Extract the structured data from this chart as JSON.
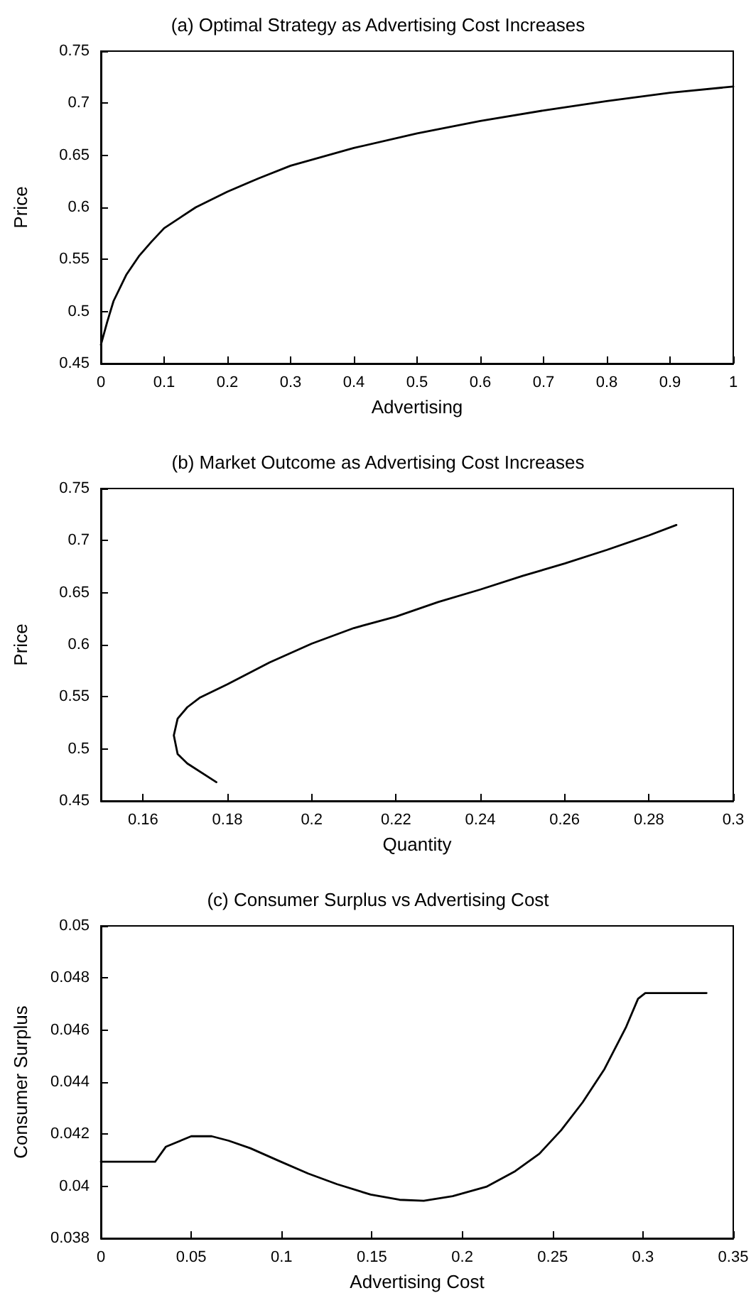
{
  "chart_data": [
    {
      "type": "line",
      "title": "(a) Optimal Strategy as Advertising Cost Increases",
      "xlabel": "Advertising",
      "ylabel": "Price",
      "xlim": [
        0,
        1
      ],
      "xticks": [
        0,
        0.1,
        0.2,
        0.3,
        0.4,
        0.5,
        0.6,
        0.7,
        0.8,
        0.9,
        1
      ],
      "ylim": [
        0.45,
        0.75
      ],
      "yticks": [
        0.45,
        0.5,
        0.55,
        0.6,
        0.65,
        0.7,
        0.75
      ],
      "grid": false,
      "marker": "none",
      "line_style": "solid",
      "series": [
        {
          "color": "#000000",
          "x": [
            0,
            0.01,
            0.02,
            0.04,
            0.06,
            0.08,
            0.1,
            0.15,
            0.2,
            0.25,
            0.3,
            0.4,
            0.5,
            0.6,
            0.7,
            0.8,
            0.9,
            1
          ],
          "values": [
            0.468,
            0.49,
            0.51,
            0.535,
            0.553,
            0.567,
            0.58,
            0.6,
            0.615,
            0.628,
            0.64,
            0.657,
            0.671,
            0.683,
            0.693,
            0.702,
            0.71,
            0.716
          ]
        }
      ]
    },
    {
      "type": "line",
      "title": "(b) Market Outcome as Advertising Cost Increases",
      "xlabel": "Quantity",
      "ylabel": "Price",
      "xlim": [
        0.15,
        0.3
      ],
      "xticks": [
        0.16,
        0.18,
        0.2,
        0.22,
        0.24,
        0.26,
        0.28,
        0.3
      ],
      "ylim": [
        0.45,
        0.75
      ],
      "yticks": [
        0.45,
        0.5,
        0.55,
        0.6,
        0.65,
        0.7,
        0.75
      ],
      "grid": false,
      "marker": "none",
      "line_style": "solid",
      "series": [
        {
          "color": "#000000",
          "x": [
            0.1774,
            0.1705,
            0.1682,
            0.1673,
            0.1682,
            0.1705,
            0.1734,
            0.18,
            0.19,
            0.2,
            0.21,
            0.22,
            0.23,
            0.24,
            0.25,
            0.26,
            0.27,
            0.28,
            0.2865
          ],
          "values": [
            0.468,
            0.486,
            0.495,
            0.513,
            0.529,
            0.54,
            0.549,
            0.562,
            0.583,
            0.601,
            0.616,
            0.627,
            0.641,
            0.653,
            0.666,
            0.678,
            0.691,
            0.705,
            0.715
          ]
        }
      ]
    },
    {
      "type": "line",
      "title": "(c) Consumer Surplus vs Advertising Cost",
      "xlabel": "Advertising Cost",
      "ylabel": "Consumer Surplus",
      "xlim": [
        0,
        0.35
      ],
      "xticks": [
        0,
        0.05,
        0.1,
        0.15,
        0.2,
        0.25,
        0.3,
        0.35
      ],
      "ylim": [
        0.038,
        0.05
      ],
      "yticks": [
        0.038,
        0.04,
        0.042,
        0.044,
        0.046,
        0.048,
        0.05
      ],
      "grid": false,
      "marker": "none",
      "line_style": "solid",
      "series": [
        {
          "color": "#000000",
          "x": [
            0,
            0.03,
            0.036,
            0.05,
            0.0613,
            0.0707,
            0.0827,
            0.0987,
            0.1147,
            0.1307,
            0.1493,
            0.1653,
            0.1787,
            0.1947,
            0.2133,
            0.2293,
            0.2427,
            0.2547,
            0.2667,
            0.2787,
            0.2907,
            0.2973,
            0.3013,
            0.3352
          ],
          "values": [
            0.04094,
            0.04094,
            0.04152,
            0.04192,
            0.04192,
            0.04175,
            0.04146,
            0.04097,
            0.04049,
            0.04008,
            0.03968,
            0.03948,
            0.03944,
            0.03962,
            0.03998,
            0.04058,
            0.04125,
            0.04215,
            0.04323,
            0.0445,
            0.04612,
            0.0472,
            0.04742,
            0.04742
          ]
        }
      ]
    }
  ]
}
